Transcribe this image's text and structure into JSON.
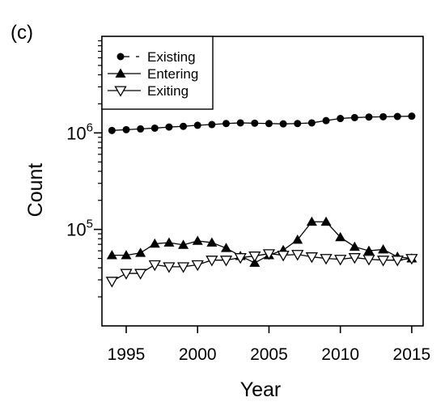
{
  "chart_data": {
    "type": "line",
    "panel_label": "(c)",
    "xlabel": "Year",
    "ylabel": "Count",
    "x_scale": "linear",
    "y_scale": "log",
    "xlim": [
      1993.3,
      2015.8
    ],
    "ylim": [
      10000,
      10000000
    ],
    "x_ticks": [
      1995,
      2000,
      2005,
      2010,
      2015
    ],
    "x_tick_labels": [
      "1995",
      "2000",
      "2005",
      "2010",
      "2015"
    ],
    "y_ticks": [
      100000,
      1000000
    ],
    "y_tick_labels": [
      {
        "base": "10",
        "exp": "5"
      },
      {
        "base": "10",
        "exp": "6"
      }
    ],
    "legend_position": "top-left",
    "grid": false,
    "x": [
      1994,
      1995,
      1996,
      1997,
      1998,
      1999,
      2000,
      2001,
      2002,
      2003,
      2004,
      2005,
      2006,
      2007,
      2008,
      2009,
      2010,
      2011,
      2012,
      2013,
      2014,
      2015
    ],
    "series": [
      {
        "name": "Existing",
        "marker": "filled-circle",
        "line": "dashed",
        "values": [
          1060000,
          1080000,
          1100000,
          1120000,
          1150000,
          1170000,
          1200000,
          1220000,
          1250000,
          1270000,
          1260000,
          1250000,
          1240000,
          1250000,
          1270000,
          1340000,
          1410000,
          1440000,
          1460000,
          1470000,
          1480000,
          1490000
        ]
      },
      {
        "name": "Entering",
        "marker": "filled-triangle-up",
        "line": "solid",
        "values": [
          54000,
          54000,
          57000,
          71000,
          73000,
          69000,
          76000,
          73000,
          64000,
          53000,
          45000,
          54000,
          61000,
          78000,
          120000,
          120000,
          83000,
          66000,
          60000,
          62000,
          52000,
          50000
        ]
      },
      {
        "name": "Exiting",
        "marker": "open-triangle-down",
        "line": "solid",
        "values": [
          29000,
          35000,
          35000,
          43000,
          41000,
          41000,
          43000,
          48000,
          48000,
          51000,
          53000,
          56000,
          54000,
          55000,
          52000,
          50000,
          49000,
          51000,
          49000,
          48000,
          48000,
          50000
        ]
      }
    ]
  }
}
